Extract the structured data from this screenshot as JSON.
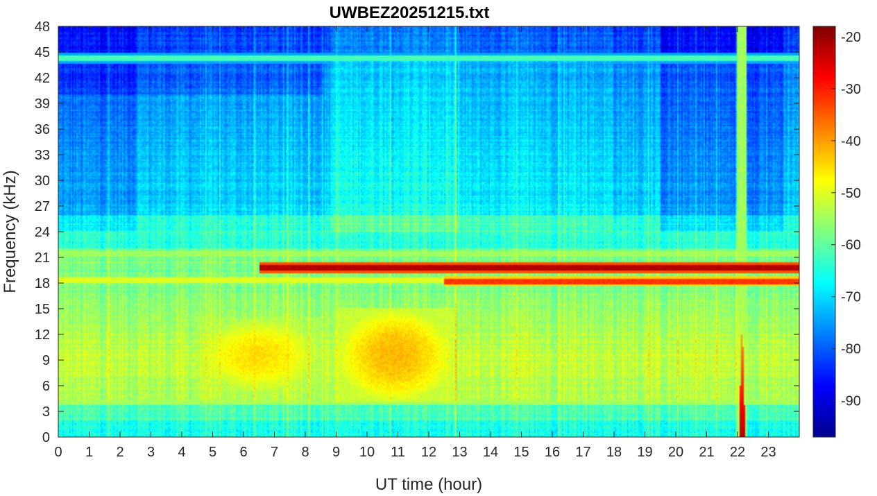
{
  "chart_data": {
    "type": "heatmap",
    "title": "UWBEZ20251215.txt",
    "xlabel": "UT time (hour)",
    "ylabel": "Frequency (kHz)",
    "xlim": [
      0,
      24
    ],
    "ylim": [
      0,
      48
    ],
    "x_ticks": [
      "0",
      "1",
      "2",
      "3",
      "4",
      "5",
      "6",
      "7",
      "8",
      "9",
      "10",
      "11",
      "12",
      "13",
      "14",
      "15",
      "16",
      "17",
      "18",
      "19",
      "20",
      "21",
      "22",
      "23"
    ],
    "y_ticks": [
      "0",
      "3",
      "6",
      "9",
      "12",
      "15",
      "18",
      "21",
      "24",
      "27",
      "30",
      "33",
      "36",
      "39",
      "42",
      "45",
      "48"
    ],
    "colormap": "jet",
    "colorbar": {
      "range": [
        -97,
        -18
      ],
      "ticks": [
        "-20",
        "-30",
        "-40",
        "-50",
        "-60",
        "-70",
        "-80",
        "-90"
      ]
    },
    "features": [
      {
        "type": "tone",
        "freq_khz": 19.8,
        "start_hour": 6.5,
        "end_hour": 24,
        "level_db": -22
      },
      {
        "type": "tone",
        "freq_khz": 18.2,
        "start_hour": 12.5,
        "end_hour": 24,
        "level_db": -32
      },
      {
        "type": "tone",
        "freq_khz": 21.4,
        "start_hour": 0,
        "end_hour": 24,
        "level_db": -55
      },
      {
        "type": "tone",
        "freq_khz": 18.3,
        "start_hour": 0,
        "end_hour": 12.5,
        "level_db": -50
      },
      {
        "type": "tone",
        "freq_khz": 44.3,
        "start_hour": 0,
        "end_hour": 24,
        "level_db": -62
      },
      {
        "type": "tone",
        "freq_khz": 4.1,
        "start_hour": 0,
        "end_hour": 24,
        "level_db": -55
      },
      {
        "type": "burst",
        "start_hour": 22.0,
        "end_hour": 22.3,
        "level_db": -55
      },
      {
        "type": "blob",
        "start_hour": 4.5,
        "end_hour": 8.5,
        "freq_low_khz": 5,
        "freq_high_khz": 14,
        "level_db": -45
      },
      {
        "type": "blob",
        "start_hour": 9.0,
        "end_hour": 12.8,
        "freq_low_khz": 4,
        "freq_high_khz": 15,
        "level_db": -42
      }
    ]
  }
}
